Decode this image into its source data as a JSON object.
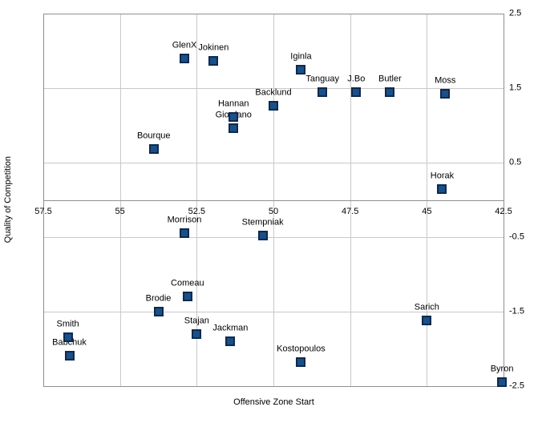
{
  "chart_data": {
    "type": "scatter",
    "title": "",
    "xlabel": "Offensive Zone Start",
    "ylabel": "Quality of Competition",
    "x_reversed": true,
    "xlim": [
      57.5,
      42.5
    ],
    "ylim": [
      -2.5,
      2.5
    ],
    "x_ticks": [
      "57.5",
      "55",
      "52.5",
      "50",
      "47.5",
      "45",
      "42.5"
    ],
    "y_ticks": [
      "2.5",
      "1.5",
      "0.5",
      "-0.5",
      "-1.5",
      "-2.5"
    ],
    "grid": true,
    "legend_position": "none",
    "marker_shape": "square",
    "label_position": "above",
    "points": [
      {
        "label": "GlenX",
        "x": 52.9,
        "y": 1.9
      },
      {
        "label": "Jokinen",
        "x": 51.95,
        "y": 1.87
      },
      {
        "label": "Iginla",
        "x": 49.1,
        "y": 1.75
      },
      {
        "label": "Tanguay",
        "x": 48.4,
        "y": 1.45
      },
      {
        "label": "J.Bo",
        "x": 47.3,
        "y": 1.45
      },
      {
        "label": "Butler",
        "x": 46.2,
        "y": 1.45
      },
      {
        "label": "Moss",
        "x": 44.4,
        "y": 1.42
      },
      {
        "label": "Backlund",
        "x": 50.0,
        "y": 1.26
      },
      {
        "label": "Hannan",
        "x": 51.3,
        "y": 1.11
      },
      {
        "label": "Giordano",
        "x": 51.3,
        "y": 0.96
      },
      {
        "label": "Bourque",
        "x": 53.9,
        "y": 0.68
      },
      {
        "label": "Horak",
        "x": 44.5,
        "y": 0.15
      },
      {
        "label": "Morrison",
        "x": 52.9,
        "y": -0.45
      },
      {
        "label": "Stempniak",
        "x": 50.35,
        "y": -0.48
      },
      {
        "label": "Comeau",
        "x": 52.8,
        "y": -1.3
      },
      {
        "label": "Brodie",
        "x": 53.75,
        "y": -1.5
      },
      {
        "label": "Sarich",
        "x": 45.0,
        "y": -1.62
      },
      {
        "label": "Smith",
        "x": 56.7,
        "y": -1.84
      },
      {
        "label": "Stajan",
        "x": 52.5,
        "y": -1.8
      },
      {
        "label": "Jackman",
        "x": 51.4,
        "y": -1.9
      },
      {
        "label": "Babchuk",
        "x": 56.65,
        "y": -2.09
      },
      {
        "label": "Kostopoulos",
        "x": 49.1,
        "y": -2.18
      },
      {
        "label": "Byron",
        "x": 42.55,
        "y": -2.45
      }
    ],
    "colors": {
      "marker_fill": "#1b4f87",
      "marker_border": "#0d2a4d",
      "gridline": "#c9c9c9",
      "axis_line": "#8f8f8f",
      "text": "#000000",
      "background": "#ffffff"
    }
  }
}
